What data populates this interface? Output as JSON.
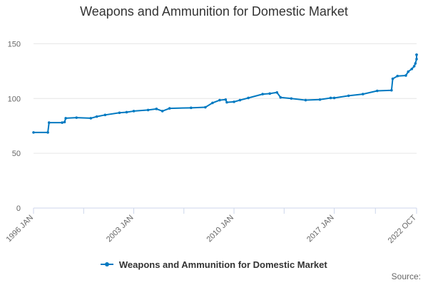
{
  "chart_data": {
    "type": "line",
    "title": "Weapons and Ammunition for Domestic Market",
    "xlabel": "",
    "ylabel": "",
    "x_tick_labels": [
      "1996 JAN",
      "2003 JAN",
      "2010 JAN",
      "2017 JAN",
      "2022 OCT"
    ],
    "y_ticks": [
      0,
      50,
      100,
      150
    ],
    "ylim": [
      0,
      160
    ],
    "xlim": [
      "1996-01",
      "2022-10"
    ],
    "grid": true,
    "legend_position": "bottom",
    "series": [
      {
        "name": "Weapons and Ammunition for Domestic Market",
        "color": "#0079c1",
        "points": [
          [
            "1996-01",
            69
          ],
          [
            "1997-01",
            69
          ],
          [
            "1997-02",
            78
          ],
          [
            "1998-01",
            78
          ],
          [
            "1998-03",
            78.5
          ],
          [
            "1998-04",
            82
          ],
          [
            "1999-01",
            82.5
          ],
          [
            "2000-01",
            82
          ],
          [
            "2000-06",
            83.5
          ],
          [
            "2001-01",
            85
          ],
          [
            "2002-01",
            87
          ],
          [
            "2002-07",
            87.5
          ],
          [
            "2003-01",
            88.5
          ],
          [
            "2004-01",
            89.5
          ],
          [
            "2004-08",
            90.5
          ],
          [
            "2005-01",
            88.5
          ],
          [
            "2005-07",
            91
          ],
          [
            "2007-01",
            91.5
          ],
          [
            "2008-01",
            92
          ],
          [
            "2008-07",
            96
          ],
          [
            "2009-01",
            98.5
          ],
          [
            "2009-06",
            99
          ],
          [
            "2009-07",
            96.5
          ],
          [
            "2010-01",
            97
          ],
          [
            "2010-06",
            98.5
          ],
          [
            "2011-01",
            100.5
          ],
          [
            "2012-01",
            104
          ],
          [
            "2012-07",
            104.5
          ],
          [
            "2013-01",
            105.5
          ],
          [
            "2013-04",
            101
          ],
          [
            "2014-01",
            100
          ],
          [
            "2015-01",
            98.5
          ],
          [
            "2016-01",
            99
          ],
          [
            "2016-10",
            100.5
          ],
          [
            "2017-01",
            100.5
          ],
          [
            "2018-01",
            102.5
          ],
          [
            "2019-01",
            104
          ],
          [
            "2020-01",
            107
          ],
          [
            "2021-01",
            107.5
          ],
          [
            "2021-02",
            118
          ],
          [
            "2021-06",
            120.5
          ],
          [
            "2022-01",
            121
          ],
          [
            "2022-03",
            124.5
          ],
          [
            "2022-06",
            127
          ],
          [
            "2022-08",
            129.5
          ],
          [
            "2022-09",
            132
          ],
          [
            "2022-10",
            136
          ],
          [
            "2022-10",
            140
          ],
          [
            "2022-10",
            140
          ]
        ]
      }
    ]
  },
  "legend": {
    "label": "Weapons and Ammunition for Domestic Market",
    "color": "#0079c1"
  },
  "footer": {
    "source_label": "Source:"
  }
}
